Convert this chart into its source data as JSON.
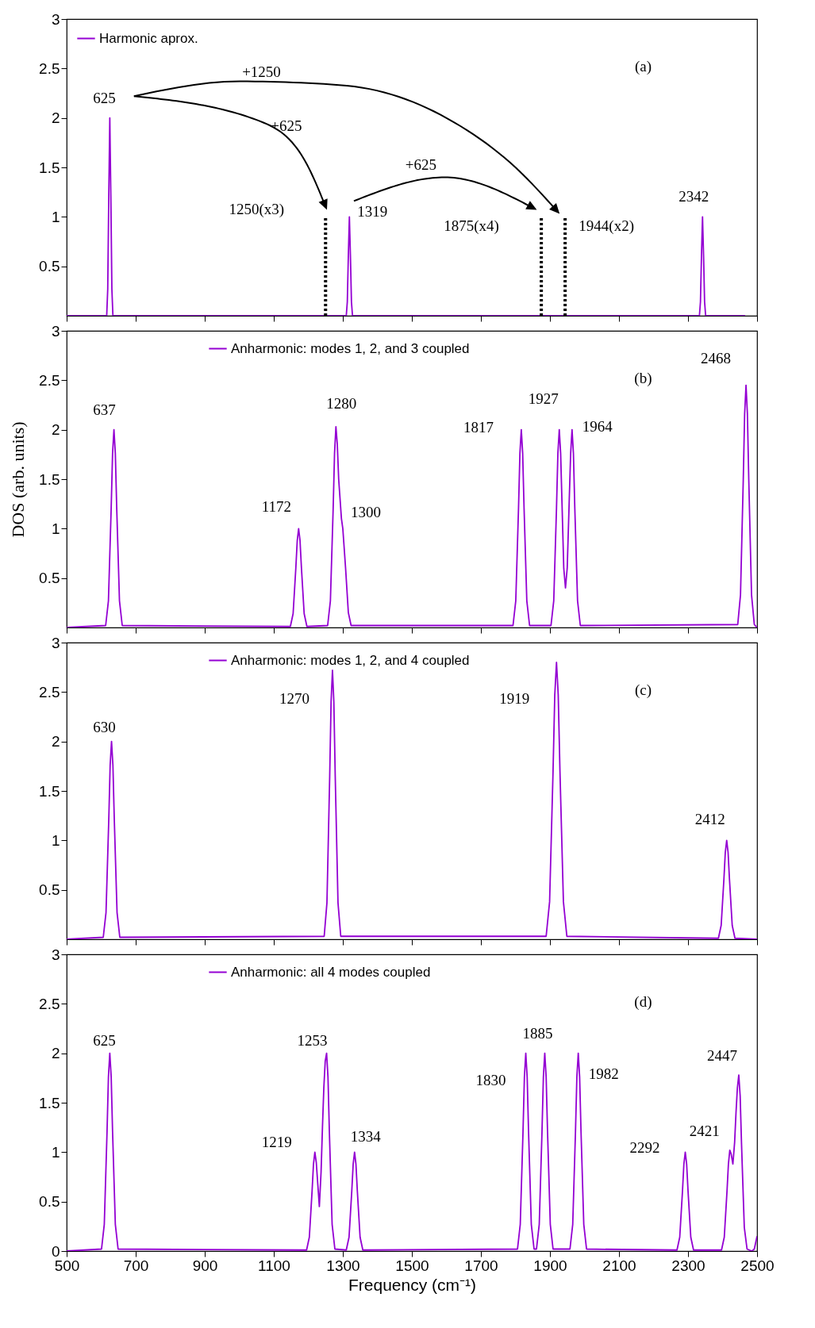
{
  "chart_data": [
    {
      "type": "line",
      "xlim": [
        500,
        2500
      ],
      "ylim": [
        0,
        3
      ],
      "yticks": [
        0.5,
        1,
        1.5,
        2,
        2.5,
        3
      ],
      "xticks": [
        500,
        700,
        900,
        1100,
        1300,
        1500,
        1700,
        1900,
        2100,
        2300,
        2500
      ],
      "tick_labels": "y",
      "legend": "top left",
      "grid": false,
      "series": [
        {
          "name": "Harmonic aprox.",
          "color": "#9400d3",
          "x": [
            500,
            616,
            619,
            622,
            625,
            628,
            631,
            634,
            1310,
            1313,
            1316,
            1319,
            1322,
            1325,
            1328,
            2333,
            2336,
            2339,
            2342,
            2345,
            2348,
            2351,
            2465
          ],
          "values": [
            0,
            0,
            0.27,
            1.21,
            2,
            1.21,
            0.27,
            0,
            0,
            0.14,
            0.61,
            1,
            0.61,
            0.14,
            0,
            0,
            0.14,
            0.61,
            1,
            0.61,
            0.14,
            0,
            0
          ]
        },
        {
          "color": "#000000",
          "line_style": "dotted",
          "x": [
            1250,
            1250
          ],
          "values": [
            0,
            1
          ]
        },
        {
          "color": "#000000",
          "line_style": "dotted",
          "x": [
            1875,
            1875
          ],
          "values": [
            0,
            1
          ]
        },
        {
          "color": "#000000",
          "line_style": "dotted",
          "x": [
            1944,
            1944
          ],
          "values": [
            0,
            1
          ]
        }
      ],
      "annotations": [
        "(a)",
        {
          "text": "625",
          "x": 625,
          "y": 2
        },
        {
          "text": "1250(x3)",
          "x": 1250,
          "y": 1
        },
        {
          "text": "1319",
          "x": 1319,
          "y": 1
        },
        {
          "text": "1875(x4)",
          "x": 1875,
          "y": 1
        },
        {
          "text": "1944(x2)",
          "x": 1944,
          "y": 1
        },
        {
          "text": "2342",
          "x": 2342,
          "y": 1
        },
        "+1250",
        "+625",
        "+625"
      ]
    },
    {
      "type": "line",
      "xlim": [
        500,
        2500
      ],
      "ylim": [
        0,
        3
      ],
      "yticks": [
        0.5,
        1,
        1.5,
        2,
        2.5,
        3
      ],
      "xticks": [
        500,
        700,
        900,
        1100,
        1300,
        1500,
        1700,
        1900,
        2100,
        2300,
        2500
      ],
      "tick_labels": "y",
      "legend": "top",
      "ylabel": "DOS (arb. units)",
      "series": [
        {
          "name": "Anharmonic: modes 1, 2, and 3 coupled",
          "color": "#9400d3",
          "x": [
            500,
            613,
            621,
            629,
            633,
            637,
            641,
            645,
            653,
            661,
            1148,
            1156,
            1164,
            1168,
            1172,
            1176,
            1180,
            1188,
            1196,
            1256,
            1264,
            1272,
            1276,
            1280,
            1284,
            1288,
            1296,
            1300,
            1304,
            1308,
            1316,
            1324,
            1793,
            1801,
            1809,
            1813,
            1817,
            1821,
            1825,
            1833,
            1841,
            1903,
            1911,
            1919,
            1923,
            1927,
            1931,
            1935,
            1940,
            1945,
            1950,
            1956,
            1960,
            1964,
            1968,
            1972,
            1980,
            1988,
            2444,
            2452,
            2460,
            2464,
            2468,
            2472,
            2476,
            2484,
            2492,
            2500
          ],
          "values": [
            0,
            0.02,
            0.27,
            1.21,
            1.76,
            2,
            1.76,
            1.21,
            0.27,
            0.02,
            0.01,
            0.14,
            0.61,
            0.88,
            1,
            0.88,
            0.61,
            0.14,
            0.01,
            0.02,
            0.27,
            1.2,
            1.76,
            2.03,
            1.85,
            1.5,
            1.1,
            1,
            0.8,
            0.6,
            0.15,
            0.02,
            0.02,
            0.27,
            1.21,
            1.76,
            2,
            1.76,
            1.21,
            0.27,
            0.02,
            0.02,
            0.27,
            1.21,
            1.76,
            2,
            1.76,
            1.25,
            0.6,
            0.4,
            0.6,
            1.3,
            1.76,
            2,
            1.76,
            1.21,
            0.27,
            0.02,
            0.03,
            0.33,
            1.49,
            2.16,
            2.45,
            2.16,
            1.49,
            0.33,
            0.03,
            0
          ]
        }
      ],
      "annotations": [
        "(b)",
        {
          "text": "637",
          "x": 637,
          "y": 2
        },
        {
          "text": "1172",
          "x": 1172,
          "y": 1
        },
        {
          "text": "1280",
          "x": 1280,
          "y": 2.03
        },
        {
          "text": "1300",
          "x": 1300,
          "y": 1
        },
        {
          "text": "1817",
          "x": 1817,
          "y": 2
        },
        {
          "text": "1927",
          "x": 1927,
          "y": 2
        },
        {
          "text": "1964",
          "x": 1964,
          "y": 2
        },
        {
          "text": "2468",
          "x": 2468,
          "y": 2.45
        }
      ]
    },
    {
      "type": "line",
      "xlim": [
        500,
        2500
      ],
      "ylim": [
        0,
        3
      ],
      "yticks": [
        0.5,
        1,
        1.5,
        2,
        2.5,
        3
      ],
      "xticks": [
        500,
        700,
        900,
        1100,
        1300,
        1500,
        1700,
        1900,
        2100,
        2300,
        2500
      ],
      "tick_labels": "y",
      "legend": "top",
      "series": [
        {
          "name": "Anharmonic: modes 1, 2, and 4 coupled",
          "color": "#9400d3",
          "x": [
            500,
            606,
            614,
            622,
            626,
            630,
            634,
            638,
            646,
            654,
            1246,
            1254,
            1262,
            1266,
            1270,
            1274,
            1278,
            1286,
            1294,
            1889,
            1899,
            1909,
            1914,
            1919,
            1924,
            1929,
            1939,
            1949,
            2388,
            2396,
            2404,
            2408,
            2412,
            2416,
            2420,
            2428,
            2436,
            2500
          ],
          "values": [
            0,
            0.02,
            0.27,
            1.21,
            1.76,
            2,
            1.76,
            1.21,
            0.27,
            0.02,
            0.03,
            0.37,
            1.65,
            2.4,
            2.72,
            2.4,
            1.65,
            0.37,
            0.03,
            0.03,
            0.38,
            1.7,
            2.47,
            2.8,
            2.47,
            1.7,
            0.38,
            0.03,
            0.01,
            0.14,
            0.61,
            0.88,
            1,
            0.88,
            0.61,
            0.14,
            0.01,
            0
          ]
        }
      ],
      "annotations": [
        "(c)",
        {
          "text": "630",
          "x": 630,
          "y": 2
        },
        {
          "text": "1270",
          "x": 1270,
          "y": 2.72
        },
        {
          "text": "1919",
          "x": 1919,
          "y": 2.8
        },
        {
          "text": "2412",
          "x": 2412,
          "y": 1
        }
      ]
    },
    {
      "type": "line",
      "xlim": [
        500,
        2500
      ],
      "ylim": [
        0,
        3
      ],
      "yticks": [
        0,
        0.5,
        1,
        1.5,
        2,
        2.5,
        3
      ],
      "xticks": [
        500,
        700,
        900,
        1100,
        1300,
        1500,
        1700,
        1900,
        2100,
        2300,
        2500
      ],
      "legend": "top",
      "xlabel": "Frequency (cm⁻¹)",
      "series": [
        {
          "name": "Anharmonic: all 4 modes coupled",
          "color": "#9400d3",
          "x": [
            500,
            601,
            609,
            617,
            621,
            625,
            629,
            633,
            641,
            649,
            1195,
            1203,
            1211,
            1215,
            1219,
            1223,
            1227,
            1232,
            1237,
            1241,
            1245,
            1249,
            1253,
            1257,
            1261,
            1269,
            1277,
            1310,
            1318,
            1326,
            1330,
            1334,
            1338,
            1342,
            1350,
            1358,
            1806,
            1814,
            1822,
            1826,
            1830,
            1834,
            1838,
            1846,
            1854,
            1861,
            1869,
            1877,
            1881,
            1885,
            1889,
            1893,
            1901,
            1909,
            1958,
            1966,
            1974,
            1978,
            1982,
            1986,
            1990,
            1998,
            2006,
            2268,
            2276,
            2284,
            2288,
            2292,
            2296,
            2300,
            2308,
            2316,
            2397,
            2405,
            2413,
            2417,
            2421,
            2425,
            2430,
            2435,
            2439,
            2443,
            2447,
            2451,
            2455,
            2463,
            2471,
            2485,
            2492,
            2500
          ],
          "values": [
            0,
            0.02,
            0.27,
            1.21,
            1.76,
            2,
            1.76,
            1.21,
            0.27,
            0.02,
            0.01,
            0.14,
            0.61,
            0.88,
            1,
            0.9,
            0.7,
            0.45,
            0.8,
            1.25,
            1.65,
            1.92,
            2,
            1.76,
            1.21,
            0.27,
            0.02,
            0.01,
            0.14,
            0.61,
            0.88,
            1,
            0.88,
            0.61,
            0.14,
            0.01,
            0.02,
            0.27,
            1.21,
            1.76,
            2,
            1.76,
            1.21,
            0.27,
            0.02,
            0.02,
            0.27,
            1.21,
            1.76,
            2,
            1.76,
            1.21,
            0.27,
            0.02,
            0.02,
            0.27,
            1.21,
            1.76,
            2,
            1.76,
            1.21,
            0.27,
            0.02,
            0.01,
            0.14,
            0.61,
            0.88,
            1,
            0.88,
            0.61,
            0.14,
            0.01,
            0.01,
            0.14,
            0.61,
            0.88,
            1.02,
            0.98,
            0.88,
            1.1,
            1.4,
            1.65,
            1.78,
            1.57,
            1.08,
            0.24,
            0.02,
            0,
            0.02,
            0.15
          ]
        }
      ],
      "annotations": [
        "(d)",
        {
          "text": "625",
          "x": 625,
          "y": 2
        },
        {
          "text": "1253",
          "x": 1253,
          "y": 2
        },
        {
          "text": "1219",
          "x": 1219,
          "y": 1
        },
        {
          "text": "1334",
          "x": 1334,
          "y": 1
        },
        {
          "text": "1830",
          "x": 1830,
          "y": 2
        },
        {
          "text": "1885",
          "x": 1885,
          "y": 2
        },
        {
          "text": "1982",
          "x": 1982,
          "y": 2
        },
        {
          "text": "2292",
          "x": 2292,
          "y": 1
        },
        {
          "text": "2421",
          "x": 2421,
          "y": 1.02
        },
        {
          "text": "2447",
          "x": 2447,
          "y": 1.78
        }
      ]
    }
  ]
}
